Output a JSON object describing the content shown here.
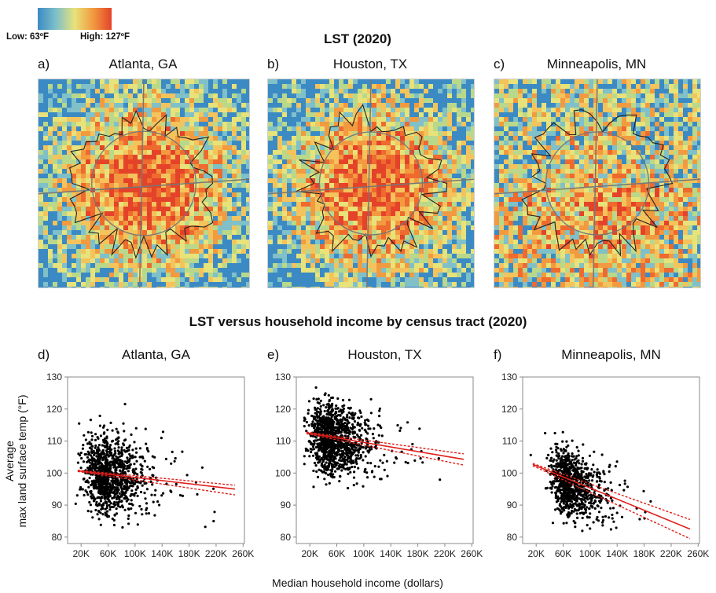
{
  "legend": {
    "low_label": "Low: 63ºF",
    "high_label": "High: 127ºF",
    "colors": [
      "#3b8ac4",
      "#7fc0c9",
      "#e8e27a",
      "#f29a3f",
      "#e4432a"
    ]
  },
  "maps": {
    "title": "LST (2020)",
    "panels": [
      {
        "letter": "a)",
        "city": "Atlanta, GA",
        "dominant": "hot"
      },
      {
        "letter": "b)",
        "city": "Houston, TX",
        "dominant": "hot"
      },
      {
        "letter": "c)",
        "city": "Minneapolis, MN",
        "dominant": "cool"
      }
    ]
  },
  "scatter_title": "LST versus household income by census tract (2020)",
  "axes": {
    "ylabel_line1": "Average",
    "ylabel_line2": "max land surface temp (°F)",
    "xlabel": "Median household income (dollars)"
  },
  "chart_data": [
    {
      "type": "scatter",
      "letter": "d)",
      "title": "Atlanta, GA",
      "xlim": [
        0,
        262000
      ],
      "ylim": [
        78,
        130
      ],
      "x_ticks": [
        "20K",
        "60K",
        "100K",
        "140K",
        "180K",
        "220K",
        "260K"
      ],
      "y_ticks": [
        "80",
        "90",
        "100",
        "110",
        "120",
        "130"
      ],
      "trend": {
        "x0": 15000,
        "y0": 100.7,
        "x1": 248000,
        "y1": 95.0
      },
      "ci": {
        "upper": [
          100.9,
          96.2
        ],
        "lower": [
          100.5,
          93.2
        ]
      },
      "cloud": {
        "center_x": 60000,
        "center_y": 100,
        "spread_x": 35000,
        "spread_y": 6,
        "n": 1100
      }
    },
    {
      "type": "scatter",
      "letter": "e)",
      "title": "Houston, TX",
      "xlim": [
        0,
        262000
      ],
      "ylim": [
        78,
        130
      ],
      "x_ticks": [
        "20K",
        "60K",
        "100K",
        "140K",
        "180K",
        "220K",
        "260K"
      ],
      "y_ticks": [
        "80",
        "90",
        "100",
        "110",
        "120",
        "130"
      ],
      "trend": {
        "x0": 15000,
        "y0": 112.6,
        "x1": 248000,
        "y1": 104.3
      },
      "ci": {
        "upper": [
          112.8,
          106.0
        ],
        "lower": [
          112.3,
          102.5
        ]
      },
      "cloud": {
        "center_x": 55000,
        "center_y": 110,
        "spread_x": 35000,
        "spread_y": 5.5,
        "n": 1200
      }
    },
    {
      "type": "scatter",
      "letter": "f)",
      "title": "Minneapolis, MN",
      "xlim": [
        0,
        262000
      ],
      "ylim": [
        78,
        130
      ],
      "x_ticks": [
        "20K",
        "60K",
        "100K",
        "140K",
        "180K",
        "220K",
        "260K"
      ],
      "y_ticks": [
        "80",
        "90",
        "100",
        "110",
        "120",
        "130"
      ],
      "trend": {
        "x0": 15000,
        "y0": 102.7,
        "x1": 248000,
        "y1": 82.5
      },
      "ci": {
        "upper": [
          103.0,
          85.5
        ],
        "lower": [
          102.3,
          79.5
        ]
      },
      "cloud": {
        "center_x": 70000,
        "center_y": 97,
        "spread_x": 30000,
        "spread_y": 5,
        "n": 900
      }
    }
  ]
}
